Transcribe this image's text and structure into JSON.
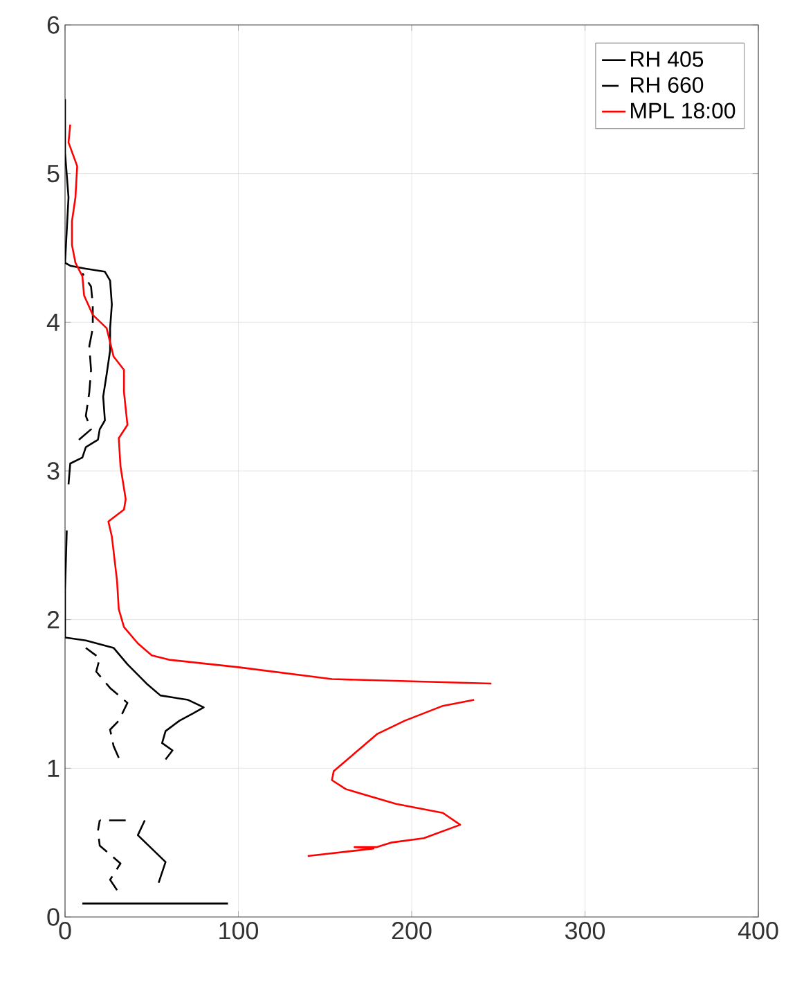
{
  "chart_data": {
    "type": "line",
    "xlim": [
      0,
      400
    ],
    "ylim": [
      0,
      6
    ],
    "xticks": [
      0,
      100,
      200,
      300,
      400
    ],
    "yticks": [
      0,
      1,
      2,
      3,
      4,
      5,
      6
    ],
    "grid": true,
    "legend": "top right",
    "series": [
      {
        "name": "RH 405",
        "color": "#000000",
        "line_style": "solid",
        "x": [
          10,
          94,
          null,
          46,
          42,
          50,
          58,
          54,
          null,
          58,
          62,
          56,
          58,
          66,
          74,
          80,
          71,
          55,
          47,
          36,
          28,
          12,
          0,
          0,
          1,
          null,
          2,
          3,
          10,
          12,
          19,
          20,
          23,
          22,
          24,
          26,
          26,
          27,
          26,
          23,
          12,
          3,
          0,
          2,
          0,
          0
        ],
        "values": [
          0.09,
          0.09,
          null,
          0.65,
          0.55,
          0.46,
          0.37,
          0.23,
          null,
          1.06,
          1.12,
          1.17,
          1.25,
          1.32,
          1.37,
          1.41,
          1.46,
          1.49,
          1.57,
          1.7,
          1.81,
          1.86,
          1.88,
          2.2,
          2.6,
          null,
          2.91,
          3.05,
          3.09,
          3.16,
          3.21,
          3.28,
          3.34,
          3.5,
          3.65,
          3.81,
          3.96,
          4.12,
          4.28,
          4.34,
          4.36,
          4.38,
          4.4,
          4.84,
          5.14,
          5.5
        ]
      },
      {
        "name": "RH 660",
        "color": "#000000",
        "line_style": "dashed",
        "x": [
          30,
          26,
          32,
          20,
          19,
          20,
          null,
          35,
          20,
          null,
          31,
          28,
          26,
          31,
          36,
          26,
          18,
          20,
          12,
          null,
          8,
          15,
          12,
          14,
          15,
          14,
          16,
          16,
          15,
          10
        ],
        "values": [
          0.18,
          0.25,
          0.36,
          0.48,
          0.58,
          0.65,
          null,
          0.65,
          0.65,
          null,
          1.07,
          1.15,
          1.26,
          1.32,
          1.44,
          1.54,
          1.65,
          1.74,
          1.81,
          null,
          3.21,
          3.28,
          3.37,
          3.53,
          3.68,
          3.84,
          3.96,
          4.12,
          4.24,
          4.33
        ]
      },
      {
        "name": "MPL 18:00",
        "color": "#ff0000",
        "line_style": "solid",
        "x": [
          140,
          178,
          167,
          180,
          188,
          207,
          228,
          218,
          191,
          162,
          154,
          155,
          164,
          180,
          196,
          218,
          236,
          null,
          246,
          154,
          100,
          60,
          50,
          42,
          34,
          31,
          30,
          27,
          25,
          34,
          35,
          32,
          31,
          36,
          34,
          34,
          28,
          24,
          16,
          11,
          10,
          6,
          4,
          4,
          6,
          7,
          2,
          3
        ],
        "values": [
          0.41,
          0.46,
          0.47,
          0.47,
          0.5,
          0.53,
          0.62,
          0.7,
          0.76,
          0.86,
          0.92,
          0.98,
          1.07,
          1.23,
          1.32,
          1.42,
          1.46,
          null,
          1.57,
          1.6,
          1.68,
          1.73,
          1.76,
          1.84,
          1.95,
          2.07,
          2.26,
          2.56,
          2.66,
          2.74,
          2.81,
          3.03,
          3.22,
          3.31,
          3.53,
          3.68,
          3.77,
          3.96,
          4.05,
          4.18,
          4.31,
          4.4,
          4.52,
          4.68,
          4.84,
          5.05,
          5.21,
          5.33
        ]
      }
    ]
  }
}
